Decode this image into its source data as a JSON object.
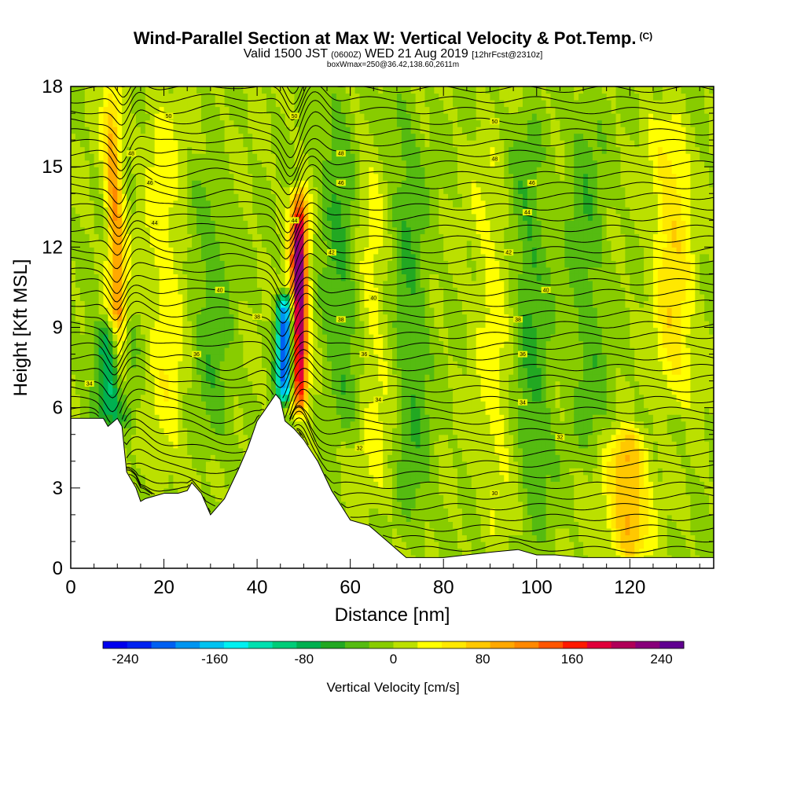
{
  "chart_data": {
    "type": "heatmap",
    "title": "Wind-Parallel Section at Max W: Vertical Velocity & Pot.Temp.",
    "title_mark": "(C)",
    "subtitle_main_a": "Valid 1500 JST",
    "subtitle_small_a": "(0600Z)",
    "subtitle_main_b": "WED 21 Aug 2019",
    "subtitle_small_b": "[12hrFcst@2310z]",
    "subtitle2": "boxWmax=250@36.42,138.60,2611m",
    "xlabel": "Distance [nm]",
    "ylabel": "Height [Kft MSL]",
    "xlim": [
      0,
      138
    ],
    "ylim": [
      0,
      18
    ],
    "x_ticks": [
      0,
      20,
      40,
      60,
      80,
      100,
      120
    ],
    "y_ticks": [
      0,
      3,
      6,
      9,
      12,
      15,
      18
    ],
    "colorbar": {
      "label": "Vertical Velocity [cm/s]",
      "range": [
        -260,
        260
      ],
      "tick_values": [
        -240,
        -160,
        -80,
        0,
        80,
        160,
        240
      ],
      "tick_labels": [
        "-240",
        "-160",
        "-80",
        "0",
        "80",
        "160",
        "240"
      ],
      "colors": [
        "#0000ee",
        "#0022f0",
        "#0060f2",
        "#0095f0",
        "#00c3f0",
        "#00f0f0",
        "#00e0b0",
        "#00cc78",
        "#00b050",
        "#22a822",
        "#55bb11",
        "#88cc00",
        "#bbe000",
        "#ffff00",
        "#ffe800",
        "#ffc800",
        "#ffa800",
        "#ff8800",
        "#ff5500",
        "#ff1a00",
        "#e0003a",
        "#b00058",
        "#88007a",
        "#600090"
      ]
    },
    "terrain_profile": [
      [
        0,
        5.6
      ],
      [
        4,
        5.6
      ],
      [
        7,
        5.6
      ],
      [
        8,
        5.3
      ],
      [
        10,
        5.6
      ],
      [
        11,
        5.3
      ],
      [
        12,
        3.6
      ],
      [
        14,
        3.0
      ],
      [
        15,
        2.5
      ],
      [
        16,
        2.6
      ],
      [
        20,
        2.8
      ],
      [
        23,
        2.8
      ],
      [
        25,
        2.9
      ],
      [
        26,
        3.2
      ],
      [
        28,
        2.8
      ],
      [
        30,
        2.0
      ],
      [
        33,
        2.6
      ],
      [
        36,
        3.7
      ],
      [
        38,
        4.5
      ],
      [
        40,
        5.5
      ],
      [
        42,
        6.0
      ],
      [
        44,
        6.5
      ],
      [
        45,
        6.3
      ],
      [
        46,
        5.5
      ],
      [
        48,
        5.2
      ],
      [
        50,
        4.8
      ],
      [
        53,
        4.0
      ],
      [
        56,
        2.9
      ],
      [
        60,
        1.8
      ],
      [
        64,
        1.6
      ],
      [
        68,
        1.0
      ],
      [
        72,
        0.4
      ],
      [
        80,
        0.4
      ],
      [
        90,
        0.6
      ],
      [
        96,
        0.7
      ],
      [
        100,
        0.5
      ],
      [
        104,
        0.5
      ],
      [
        110,
        0.4
      ],
      [
        119,
        0.4
      ],
      [
        121,
        0.4
      ],
      [
        126,
        0.4
      ],
      [
        130,
        0.4
      ],
      [
        137,
        0.4
      ]
    ],
    "vertical_velocity_features": [
      {
        "center_x": 11,
        "bottom_y": 6,
        "top_y": 18,
        "value": 110
      },
      {
        "center_x": 9,
        "bottom_y": 5.5,
        "top_y": 9,
        "value": -90
      },
      {
        "center_x": 49,
        "bottom_y": 6,
        "top_y": 14,
        "value": 240
      },
      {
        "center_x": 46,
        "bottom_y": 6.5,
        "top_y": 10,
        "value": -230
      },
      {
        "center_x": 120,
        "bottom_y": 0.5,
        "top_y": 5,
        "value": 95
      },
      {
        "center_x": 21,
        "bottom_y": 3,
        "top_y": 18,
        "value": 35
      },
      {
        "center_x": 31,
        "bottom_y": 4,
        "top_y": 15,
        "value": -35
      },
      {
        "center_x": 59,
        "bottom_y": 5,
        "top_y": 18,
        "value": -45
      },
      {
        "center_x": 66,
        "bottom_y": 2,
        "top_y": 17,
        "value": 30
      },
      {
        "center_x": 74,
        "bottom_y": 1,
        "top_y": 18,
        "value": -40
      },
      {
        "center_x": 92,
        "bottom_y": 1,
        "top_y": 16,
        "value": 30
      },
      {
        "center_x": 100,
        "bottom_y": 1,
        "top_y": 17,
        "value": -45
      },
      {
        "center_x": 112,
        "bottom_y": 4,
        "top_y": 18,
        "value": -35
      },
      {
        "center_x": 130,
        "bottom_y": 6,
        "top_y": 17,
        "value": 60
      }
    ],
    "potential_temperature_contour_labels": [
      {
        "x": 4,
        "y": 6.9,
        "text": "34"
      },
      {
        "x": 27,
        "y": 8.0,
        "text": "36"
      },
      {
        "x": 32,
        "y": 10.4,
        "text": "40"
      },
      {
        "x": 40,
        "y": 9.4,
        "text": "38"
      },
      {
        "x": 18,
        "y": 12.9,
        "text": "44"
      },
      {
        "x": 17,
        "y": 14.4,
        "text": "46"
      },
      {
        "x": 13,
        "y": 15.5,
        "text": "48"
      },
      {
        "x": 21,
        "y": 16.9,
        "text": "50"
      },
      {
        "x": 48,
        "y": 16.9,
        "text": "50"
      },
      {
        "x": 58,
        "y": 15.5,
        "text": "48"
      },
      {
        "x": 58,
        "y": 14.4,
        "text": "46"
      },
      {
        "x": 48,
        "y": 13.0,
        "text": "44"
      },
      {
        "x": 56,
        "y": 11.8,
        "text": "42"
      },
      {
        "x": 65,
        "y": 10.1,
        "text": "40"
      },
      {
        "x": 58,
        "y": 9.3,
        "text": "38"
      },
      {
        "x": 63,
        "y": 8.0,
        "text": "36"
      },
      {
        "x": 66,
        "y": 6.3,
        "text": "34"
      },
      {
        "x": 62,
        "y": 4.5,
        "text": "32"
      },
      {
        "x": 91,
        "y": 16.7,
        "text": "50"
      },
      {
        "x": 91,
        "y": 15.3,
        "text": "48"
      },
      {
        "x": 99,
        "y": 14.4,
        "text": "46"
      },
      {
        "x": 98,
        "y": 13.3,
        "text": "44"
      },
      {
        "x": 94,
        "y": 11.8,
        "text": "42"
      },
      {
        "x": 102,
        "y": 10.4,
        "text": "40"
      },
      {
        "x": 96,
        "y": 9.3,
        "text": "38"
      },
      {
        "x": 97,
        "y": 8.0,
        "text": "36"
      },
      {
        "x": 97,
        "y": 6.2,
        "text": "34"
      },
      {
        "x": 105,
        "y": 4.9,
        "text": "32"
      },
      {
        "x": 91,
        "y": 2.8,
        "text": "30"
      }
    ]
  }
}
